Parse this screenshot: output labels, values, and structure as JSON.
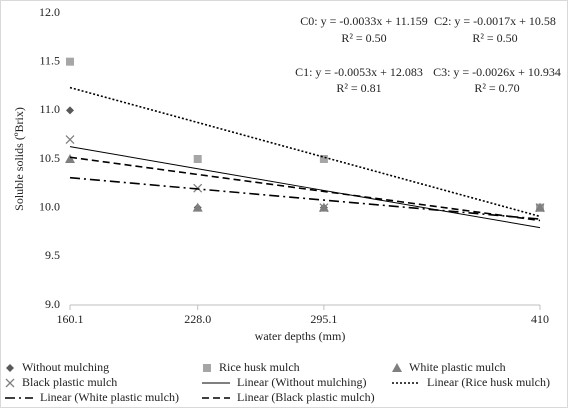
{
  "chart_data": {
    "type": "line",
    "x_label": "water depths (mm)",
    "y_label": "Soluble solids (ºBrix)",
    "x": [
      160.1,
      228,
      295.1,
      410
    ],
    "xlim": [
      160.1,
      410
    ],
    "xticks": [
      {
        "value": 160.1,
        "label": "160.1"
      },
      {
        "value": 228,
        "label": "228.0"
      },
      {
        "value": 295.1,
        "label": "295.1"
      },
      {
        "value": 410,
        "label": "410"
      }
    ],
    "ylim": [
      9,
      12
    ],
    "yticks": [
      {
        "value": 9,
        "label": "9.0"
      },
      {
        "value": 9.5,
        "label": "9.5"
      },
      {
        "value": 10,
        "label": "10.0"
      },
      {
        "value": 10.5,
        "label": "10.5"
      },
      {
        "value": 11,
        "label": "11.0"
      },
      {
        "value": 11.5,
        "label": "11.5"
      },
      {
        "value": 12,
        "label": "12.0"
      }
    ],
    "grid": false,
    "legend": "bottom",
    "series": [
      {
        "name": "Without mulching",
        "color": "#595959",
        "marker": "diamond",
        "values": [
          11.0,
          10.0,
          10.0,
          10.0
        ]
      },
      {
        "name": "Rice husk mulch",
        "color": "#a6a6a6",
        "marker": "square",
        "values": [
          11.5,
          10.5,
          10.5,
          10.0
        ]
      },
      {
        "name": "White plastic mulch",
        "color": "#7f7f7f",
        "marker": "triangle",
        "values": [
          10.5,
          10.0,
          10.0,
          10.0
        ]
      },
      {
        "name": "Black plastic mulch",
        "color": "#7f7f7f",
        "marker": "x",
        "values": [
          10.7,
          10.2,
          10.0,
          10.0
        ]
      },
      {
        "name": "Linear (Without mulching)",
        "color": "#000000",
        "dash": "solid",
        "values": [
          10.627,
          10.4,
          10.177,
          9.795
        ]
      },
      {
        "name": "Linear (Rice husk mulch)",
        "color": "#000000",
        "dash": "dotted",
        "values": [
          11.234,
          10.875,
          10.519,
          9.91
        ]
      },
      {
        "name": "Linear (White plastic mulch)",
        "color": "#000000",
        "dash": "dashdot",
        "values": [
          10.308,
          10.192,
          10.078,
          9.883
        ]
      },
      {
        "name": "Linear (Black plastic mulch)",
        "color": "#000000",
        "dash": "dashed",
        "values": [
          10.518,
          10.341,
          10.167,
          9.868
        ]
      }
    ],
    "annotations": [
      "C0: y = -0.0033x + 11.159",
      "R² = 0.50",
      "C2: y = -0.0017x + 10.58",
      "R² = 0.50",
      "C1: y = -0.0053x + 12.083",
      "R² = 0.81",
      "C3: y = -0.0026x + 10.934",
      "R² = 0.70"
    ]
  }
}
